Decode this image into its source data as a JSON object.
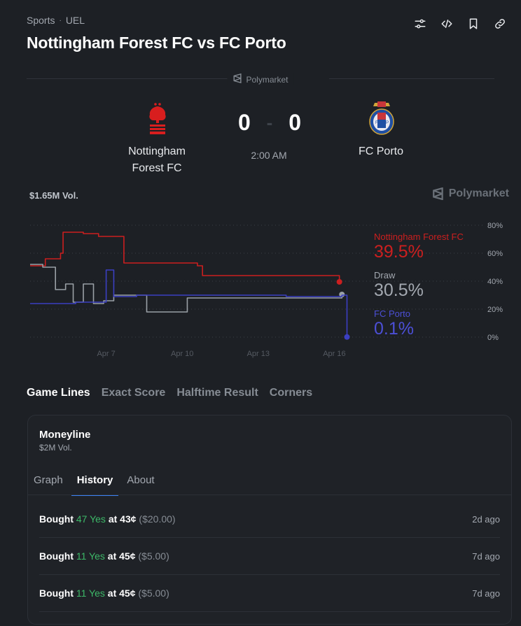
{
  "header": {
    "breadcrumb": [
      "Sports",
      "UEL"
    ],
    "breadcrumb_sep": "·",
    "title": "Nottingham Forest FC vs FC Porto"
  },
  "toolbar_icons": [
    "sliders-icon",
    "code-icon",
    "bookmark-icon",
    "link-icon"
  ],
  "source": {
    "label": "Polymarket"
  },
  "match": {
    "home": {
      "name": "Nottingham Forest FC",
      "name_line1": "Nottingham",
      "name_line2": "Forest FC",
      "color": "#e11d1d"
    },
    "away": {
      "name": "FC Porto",
      "color": "#1f4fa3"
    },
    "home_score": "0",
    "away_score": "0",
    "score_sep": "-",
    "time": "2:00 AM"
  },
  "volume": "$1.65M Vol.",
  "watermark": "Polymarket",
  "chart_data": {
    "type": "line",
    "y_ticks": [
      "80%",
      "60%",
      "40%",
      "20%",
      "0%"
    ],
    "ylim": [
      0,
      80
    ],
    "x_ticks": [
      "Apr 7",
      "Apr 10",
      "Apr 13",
      "Apr 16"
    ],
    "grid": true,
    "series": [
      {
        "name": "Nottingham Forest FC",
        "current": "39.5%",
        "color": "#cc1f1f",
        "x": [
          "Apr 4",
          "Apr 4.6",
          "Apr 5.2",
          "Apr 5.3",
          "Apr 6.1",
          "Apr 6.7",
          "Apr 7.6",
          "Apr 7.7",
          "Apr 9.8",
          "Apr 10.6",
          "Apr 10.8",
          "Apr 16.2"
        ],
        "values": [
          51,
          56,
          60,
          75,
          74,
          72,
          72,
          53,
          53,
          51,
          44,
          39.5
        ]
      },
      {
        "name": "Draw",
        "current": "30.5%",
        "color": "#9aa0a6",
        "x": [
          "Apr 4",
          "Apr 4.5",
          "Apr 5",
          "Apr 5.4",
          "Apr 5.7",
          "Apr 6.1",
          "Apr 6.5",
          "Apr 6.9",
          "Apr 7.3",
          "Apr 8.2",
          "Apr 8.6",
          "Apr 9.9",
          "Apr 10.2",
          "Apr 13.9",
          "Apr 16.3"
        ],
        "values": [
          52,
          50,
          34,
          38,
          25,
          38,
          24,
          26,
          30,
          30,
          18,
          18,
          28,
          28,
          30.5
        ]
      },
      {
        "name": "FC Porto",
        "current": "0.1%",
        "color": "#3b3fc2",
        "x": [
          "Apr 4",
          "Apr 4.8",
          "Apr 5.8",
          "Apr 6.8",
          "Apr 7",
          "Apr 7.3",
          "Apr 8.2",
          "Apr 10.1",
          "Apr 14.1",
          "Apr 16.3",
          "Apr 16.5"
        ],
        "values": [
          24,
          24,
          25,
          25,
          48,
          29,
          30,
          30,
          29,
          30,
          0.1
        ]
      }
    ]
  },
  "market_tabs": [
    {
      "label": "Game Lines",
      "active": true
    },
    {
      "label": "Exact Score",
      "active": false
    },
    {
      "label": "Halftime Result",
      "active": false
    },
    {
      "label": "Corners",
      "active": false
    }
  ],
  "market": {
    "title": "Moneyline",
    "volume": "$2M Vol.",
    "tabs": [
      {
        "label": "Graph",
        "active": false
      },
      {
        "label": "History",
        "active": true
      },
      {
        "label": "About",
        "active": false
      }
    ],
    "history": [
      {
        "action": "Bought",
        "shares": "47 Yes",
        "at": "at 43¢",
        "amount": "($20.00)",
        "ago": "2d ago"
      },
      {
        "action": "Bought",
        "shares": "11 Yes",
        "at": "at 45¢",
        "amount": "($5.00)",
        "ago": "7d ago"
      },
      {
        "action": "Bought",
        "shares": "11 Yes",
        "at": "at 45¢",
        "amount": "($5.00)",
        "ago": "7d ago"
      }
    ]
  }
}
